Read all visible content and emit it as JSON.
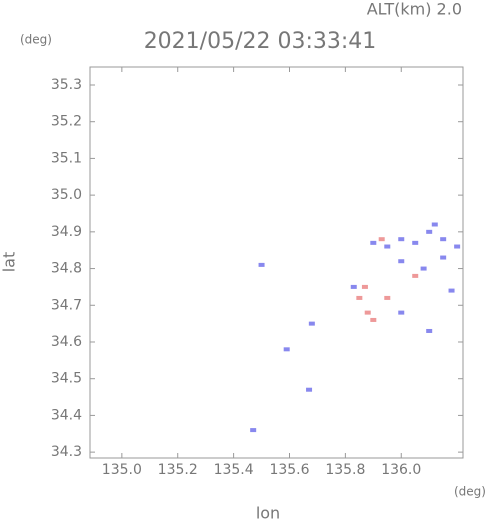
{
  "header": {
    "altitude": "ALT(km) 2.0",
    "y_unit": "(deg)",
    "x_unit": "(deg)"
  },
  "chart_data": {
    "type": "scatter",
    "title": "2021/05/22 03:33:41",
    "x_label": "lon",
    "y_label": "lat",
    "xlim": [
      134.886,
      136.221
    ],
    "ylim": [
      34.284,
      35.349
    ],
    "xticks": [
      {
        "value": 135,
        "label": "135.0"
      },
      135.2,
      135.4,
      135.6,
      135.8,
      {
        "value": 136,
        "label": "136.0"
      }
    ],
    "yticks": [
      34.3,
      34.4,
      34.5,
      34.6,
      34.7,
      34.8,
      34.9,
      {
        "value": 35,
        "label": "35.0"
      },
      35.1,
      35.2,
      35.3
    ],
    "series": [
      {
        "color": "#8888ee",
        "x": [
          136.0,
          136.05,
          136.1,
          136.15,
          136.2,
          135.95,
          135.9,
          136.0,
          136.08,
          136.15,
          136.12,
          136.18,
          136.1,
          135.67,
          135.47,
          135.5,
          135.59,
          135.68,
          135.83,
          136.0
        ],
        "y": [
          34.88,
          34.87,
          34.9,
          34.88,
          34.86,
          34.86,
          34.87,
          34.82,
          34.8,
          34.83,
          34.92,
          34.74,
          34.63,
          34.47,
          34.36,
          34.81,
          34.58,
          34.65,
          34.75,
          34.68
        ]
      },
      {
        "color": "#ee9999",
        "x": [
          135.85,
          135.88,
          135.9,
          135.95,
          135.87,
          136.05,
          135.93
        ],
        "y": [
          34.72,
          34.68,
          34.66,
          34.72,
          34.75,
          34.78,
          34.88
        ]
      }
    ]
  }
}
